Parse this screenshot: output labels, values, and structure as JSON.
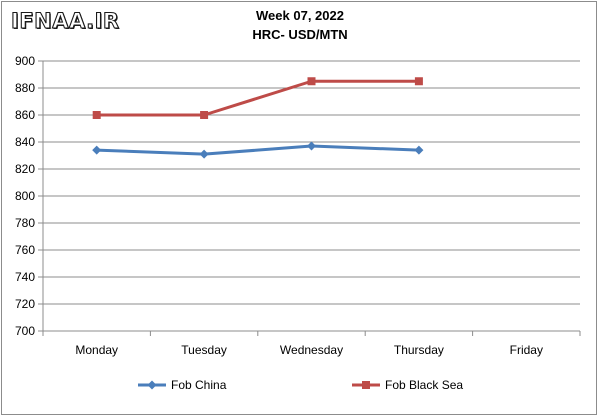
{
  "watermark": "IFNAA.IR",
  "chart_data": {
    "type": "line",
    "title": "Week 07, 2022",
    "subtitle": "HRC- USD/MTN",
    "categories": [
      "Monday",
      "Tuesday",
      "Wednesday",
      "Thursday",
      "Friday"
    ],
    "series": [
      {
        "name": "Fob China",
        "values": [
          834,
          831,
          837,
          834,
          null
        ],
        "color": "#4a7ebb",
        "marker": "diamond"
      },
      {
        "name": "Fob Black Sea",
        "values": [
          860,
          860,
          885,
          885,
          null
        ],
        "color": "#be4b48",
        "marker": "square"
      }
    ],
    "ylim": [
      700,
      900
    ],
    "yticks": [
      700,
      720,
      740,
      760,
      780,
      800,
      820,
      840,
      860,
      880,
      900
    ],
    "grid": true,
    "legend_position": "bottom"
  }
}
